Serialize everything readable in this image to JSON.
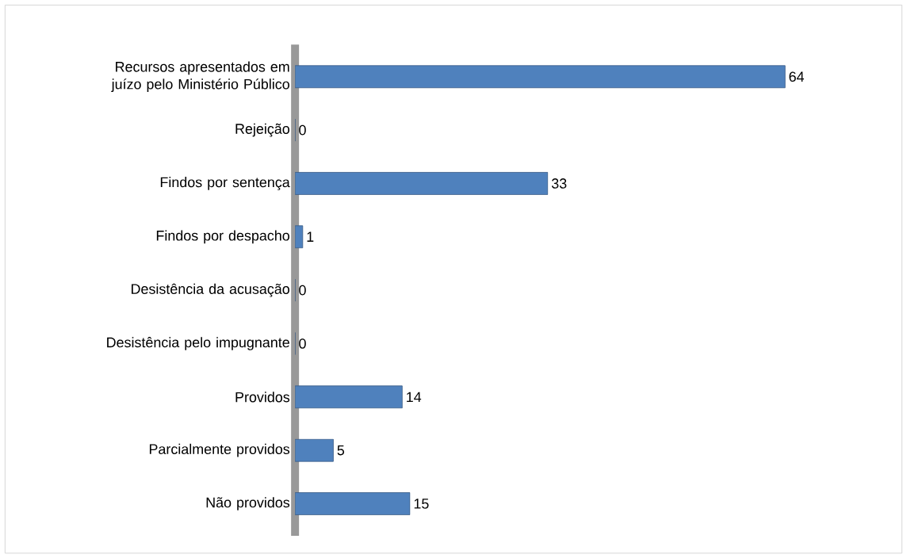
{
  "chart_data": {
    "type": "bar",
    "orientation": "horizontal",
    "categories": [
      "Recursos apresentados em juízo pelo Ministério Público",
      "Rejeição",
      "Findos por sentença",
      "Findos por despacho",
      "Desistência da acusação",
      "Desistência pelo impugnante",
      "Providos",
      "Parcialmente providos",
      "Não providos"
    ],
    "values": [
      64,
      0,
      33,
      1,
      0,
      0,
      14,
      5,
      15
    ],
    "color": "#4f81bd",
    "data_labels": true
  }
}
